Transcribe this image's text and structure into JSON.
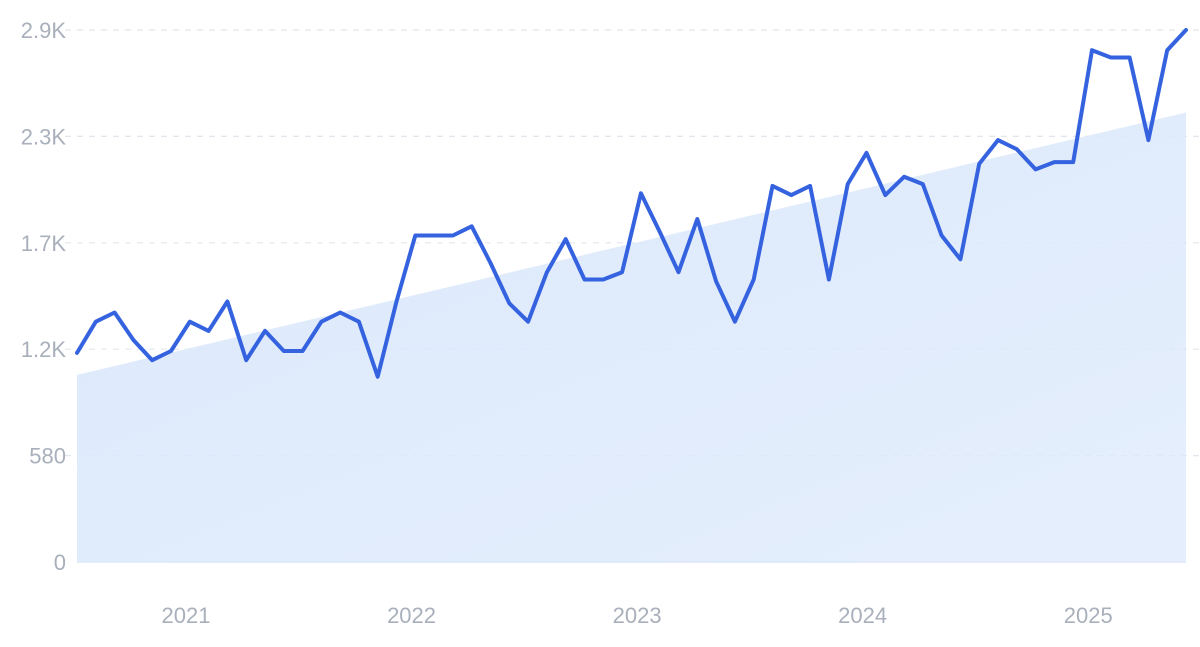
{
  "colors": {
    "line": "#3563e0",
    "trend_fill": "#dce9fb",
    "grid": "#e2e6ec",
    "tick_text": "#a9b0bb"
  },
  "chart_data": {
    "type": "line",
    "title": "",
    "xlabel": "",
    "ylabel": "",
    "ylim": [
      0,
      2900
    ],
    "xlim": [
      "2020-08",
      "2025-07"
    ],
    "yticks": [
      {
        "value": 0,
        "label": "0"
      },
      {
        "value": 580,
        "label": "580"
      },
      {
        "value": 1160,
        "label": "1.2K"
      },
      {
        "value": 1740,
        "label": "1.7K"
      },
      {
        "value": 2320,
        "label": "2.3K"
      },
      {
        "value": 2900,
        "label": "2.9K"
      }
    ],
    "xticks": [
      {
        "value": "2021-01",
        "label": "2021"
      },
      {
        "value": "2022-01",
        "label": "2022"
      },
      {
        "value": "2023-01",
        "label": "2023"
      },
      {
        "value": "2024-01",
        "label": "2024"
      },
      {
        "value": "2025-01",
        "label": "2025"
      }
    ],
    "grid": true,
    "legend": "none",
    "trend_area": {
      "x": [
        "2020-08",
        "2025-07"
      ],
      "y": [
        1020,
        2450
      ]
    },
    "series": [
      {
        "x": [
          "2020-08",
          "2020-09",
          "2020-10",
          "2020-11",
          "2020-12",
          "2021-01",
          "2021-02",
          "2021-03",
          "2021-04",
          "2021-05",
          "2021-06",
          "2021-07",
          "2021-08",
          "2021-09",
          "2021-10",
          "2021-11",
          "2021-12",
          "2022-01",
          "2022-02",
          "2022-03",
          "2022-04",
          "2022-05",
          "2022-06",
          "2022-07",
          "2022-08",
          "2022-09",
          "2022-10",
          "2022-11",
          "2022-12",
          "2023-01",
          "2023-02",
          "2023-03",
          "2023-04",
          "2023-05",
          "2023-06",
          "2023-07",
          "2023-08",
          "2023-09",
          "2023-10",
          "2023-11",
          "2023-12",
          "2024-01",
          "2024-02",
          "2024-03",
          "2024-04",
          "2024-05",
          "2024-06",
          "2024-07",
          "2024-08",
          "2024-09",
          "2024-10",
          "2024-11",
          "2024-12",
          "2025-01",
          "2025-02",
          "2025-03",
          "2025-04",
          "2025-05",
          "2025-06",
          "2025-07"
        ],
        "values": [
          1140,
          1310,
          1360,
          1210,
          1100,
          1150,
          1310,
          1260,
          1420,
          1100,
          1260,
          1150,
          1150,
          1310,
          1360,
          1310,
          1010,
          1420,
          1780,
          1780,
          1780,
          1830,
          1630,
          1410,
          1310,
          1580,
          1760,
          1540,
          1540,
          1580,
          2010,
          1800,
          1580,
          1870,
          1530,
          1310,
          1540,
          2050,
          2000,
          2050,
          1540,
          2060,
          2230,
          2000,
          2100,
          2060,
          1780,
          1650,
          2170,
          2300,
          2250,
          2140,
          2180,
          2180,
          2790,
          2750,
          2750,
          2300,
          2790,
          2900
        ]
      }
    ]
  }
}
